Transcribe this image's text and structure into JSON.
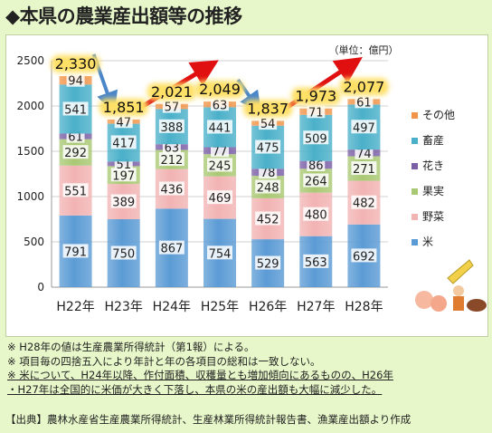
{
  "title": "◆本県の農業産出額等の推移",
  "unit_label": "（単位：億円）",
  "notes": [
    "※ H28年の値は生産農業所得統計（第1報）による。",
    "※ 項目毎の四捨五入により年計と年の各項目の総和は一致しない。",
    "※ 米について、H24年以降、作付面積、収穫量とも増加傾向にあるものの、H26年",
    "・H27年は全国的に米価が大きく下落し、本県の米の産出額も大幅に減少した。"
  ],
  "source": "【出典】農林水産省生産農業所得統計、生産林業所得統計報告書、漁業産出額より作成",
  "colors": {
    "米": "#5b9bd5",
    "野菜": "#f2b3b3",
    "果実": "#a9c873",
    "花き": "#7a5fa6",
    "畜産": "#4ab0c9",
    "その他": "#f0944a",
    "arrow_up": "#e01010",
    "arrow_down": "#4a86c8"
  },
  "chart_data": {
    "type": "bar",
    "stacked": true,
    "categories": [
      "H22年",
      "H23年",
      "H24年",
      "H25年",
      "H26年",
      "H27年",
      "H28年"
    ],
    "ylim": [
      0,
      2500
    ],
    "yticks": [
      0,
      500,
      1000,
      1500,
      2000,
      2500
    ],
    "series": [
      {
        "name": "米",
        "values": [
          791,
          750,
          867,
          754,
          529,
          563,
          692
        ]
      },
      {
        "name": "野菜",
        "values": [
          551,
          389,
          436,
          469,
          452,
          480,
          482
        ]
      },
      {
        "name": "果実",
        "values": [
          292,
          197,
          212,
          245,
          248,
          264,
          271
        ]
      },
      {
        "name": "花き",
        "values": [
          61,
          51,
          63,
          77,
          78,
          86,
          74
        ]
      },
      {
        "name": "畜産",
        "values": [
          541,
          417,
          388,
          441,
          475,
          509,
          497
        ]
      },
      {
        "name": "その他",
        "values": [
          94,
          47,
          57,
          63,
          54,
          71,
          61
        ]
      }
    ],
    "totals": [
      2330,
      1851,
      2021,
      2049,
      1837,
      1973,
      2077
    ],
    "total_labels": [
      "2,330",
      "1,851",
      "2,021",
      "2,049",
      "1,837",
      "1,973",
      "2,077"
    ],
    "trend_arrows": [
      {
        "from": 0,
        "to": 1,
        "direction": "down"
      },
      {
        "from": 1,
        "to": 3,
        "direction": "up"
      },
      {
        "from": 3,
        "to": 4,
        "direction": "down"
      },
      {
        "from": 4,
        "to": 6,
        "direction": "up"
      }
    ],
    "legend_position": "right",
    "grid": true
  }
}
